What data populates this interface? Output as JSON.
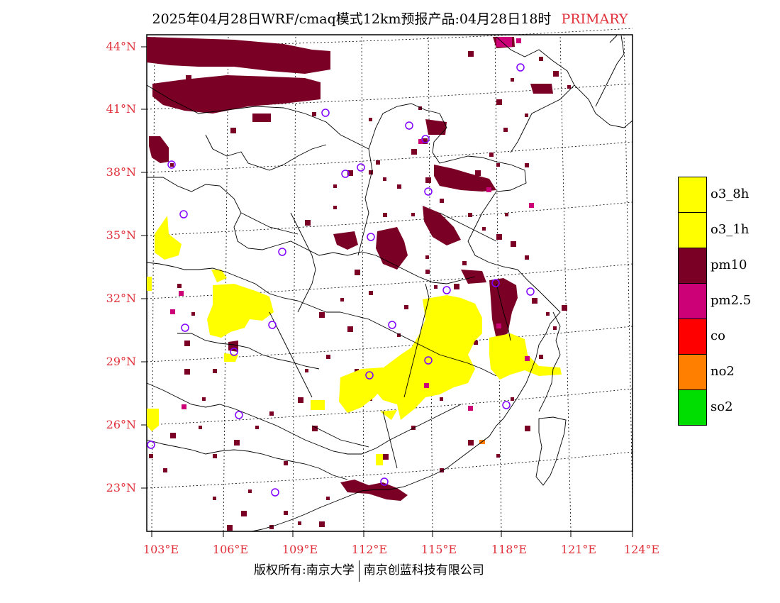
{
  "title": {
    "text": "2025年04月28日WRF/cmaq模式12km预报产品:04月28日18时",
    "tag": "PRIMARY",
    "tag_color": "#e0303a"
  },
  "map": {
    "lat_labels": [
      "44°N",
      "41°N",
      "38°N",
      "35°N",
      "32°N",
      "29°N",
      "26°N",
      "23°N"
    ],
    "lon_labels": [
      "103°E",
      "106°E",
      "109°E",
      "112°E",
      "115°E",
      "118°E",
      "121°E",
      "124°E"
    ]
  },
  "legend": [
    {
      "label": "o3_8h",
      "color": "#ffff00"
    },
    {
      "label": "o3_1h",
      "color": "#ffff00"
    },
    {
      "label": "pm10",
      "color": "#7a0026"
    },
    {
      "label": "pm2.5",
      "color": "#cc0077"
    },
    {
      "label": "co",
      "color": "#ff0000"
    },
    {
      "label": "no2",
      "color": "#ff8000"
    },
    {
      "label": "so2",
      "color": "#00dd00"
    }
  ],
  "colors": {
    "pm10": "#7a0026",
    "pm25": "#cc0077",
    "o3": "#ffff00",
    "no2": "#ff8000",
    "station": "#8000ff",
    "label_red": "#e0303a"
  },
  "footer": {
    "left": "版权所有:南京大学",
    "right": "南京创蓝科技有限公司"
  }
}
